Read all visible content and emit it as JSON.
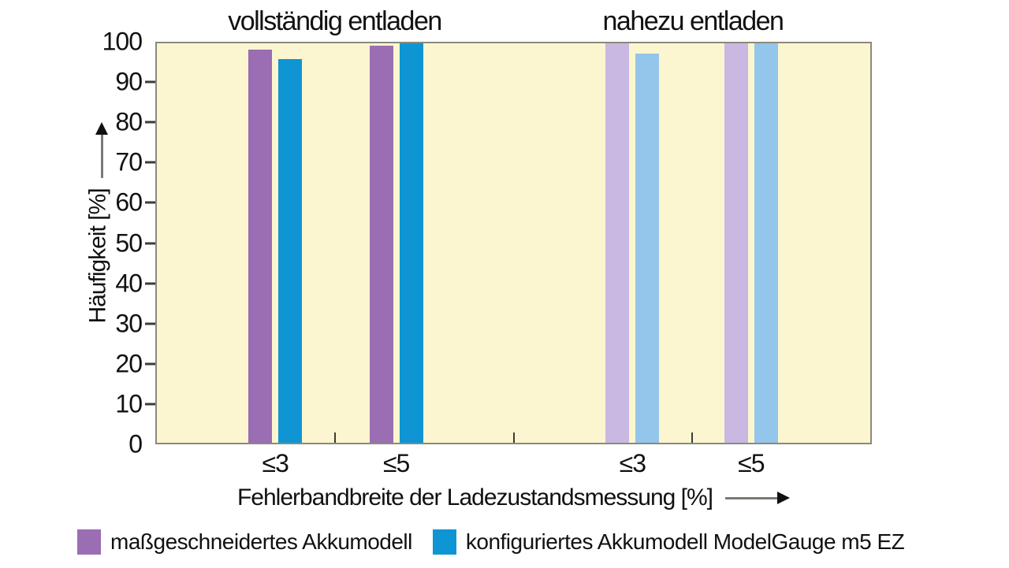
{
  "chart_data": {
    "type": "bar",
    "section_titles": [
      "vollständig entladen",
      "nahezu entladen"
    ],
    "ylabel": "Häufigkeit [%]",
    "xlabel": "Fehlerbandbreite der Ladezustandsmessung [%]",
    "ylim": [
      0,
      100
    ],
    "yticks": [
      0,
      10,
      20,
      30,
      40,
      50,
      60,
      70,
      80,
      90,
      100
    ],
    "categories": [
      "≤3",
      "≤5",
      "≤3",
      "≤5"
    ],
    "groups": [
      {
        "section": "vollständig entladen",
        "category": "≤3",
        "shade": "dark",
        "values": [
          98.5,
          96
        ]
      },
      {
        "section": "vollständig entladen",
        "category": "≤5",
        "shade": "dark",
        "values": [
          99.5,
          100
        ]
      },
      {
        "section": "nahezu entladen",
        "category": "≤3",
        "shade": "light",
        "values": [
          100,
          97.5
        ]
      },
      {
        "section": "nahezu entladen",
        "category": "≤5",
        "shade": "light",
        "values": [
          100,
          100
        ]
      }
    ],
    "series": [
      {
        "name": "maßgeschneidertes Akkumodell",
        "color": "#9b6db2",
        "color_light": "#c9b8e1"
      },
      {
        "name": "konfiguriertes Akkumodell ModelGauge m5 EZ",
        "color": "#0f95d4",
        "color_light": "#94c5ea"
      }
    ],
    "colors": {
      "plot_background": "#fbf6d0",
      "plot_border": "#8a897e",
      "axis_text": "#111111",
      "arrow_line": "#7a7a74",
      "arrow_head": "#111111"
    },
    "legend_position": "bottom",
    "grid": false
  },
  "legend": {
    "items": [
      {
        "label": "maßgeschneidertes Akkumodell"
      },
      {
        "label": "konfiguriertes Akkumodell ModelGauge m5 EZ"
      }
    ]
  }
}
